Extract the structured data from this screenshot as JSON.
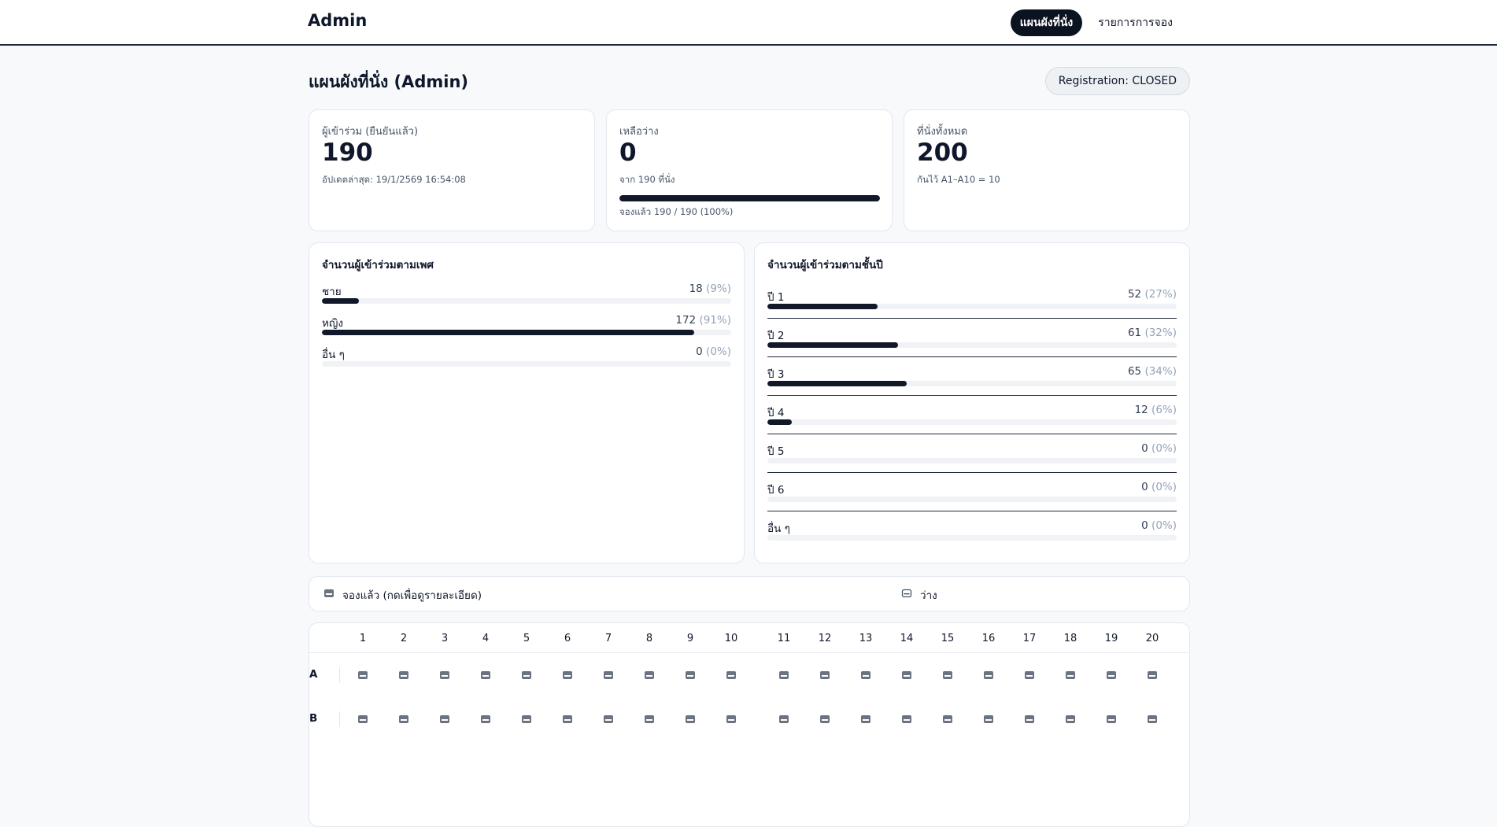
{
  "header": {
    "brand": "Admin",
    "nav": {
      "seat_map": "แผนผังที่นั่ง",
      "bookings": "รายการการจอง"
    }
  },
  "page": {
    "title": "แผนผังที่นั่ง (Admin)",
    "registration_badge": "Registration: CLOSED"
  },
  "stats": {
    "attendees": {
      "label": "ผู้เข้าร่วม (ยืนยันแล้ว)",
      "value": "190",
      "sub": "อัปเดตล่าสุด: 19/1/2569 16:54:08"
    },
    "available": {
      "label": "เหลือว่าง",
      "value": "0",
      "sub": "จาก 190 ที่นั่ง",
      "progress": 1.0,
      "progress_text": "จองแล้ว 190 / 190 (100%)"
    },
    "total": {
      "label": "ที่นั่งทั้งหมด",
      "value": "200",
      "sub": "กันไว้ A1–A10 = 10"
    }
  },
  "gender_panel": {
    "title": "จำนวนผู้เข้าร่วมตามเพศ",
    "rows": [
      {
        "label": "ชาย",
        "count": "18",
        "pct": "(9%)",
        "fraction": 0.09
      },
      {
        "label": "หญิง",
        "count": "172",
        "pct": "(91%)",
        "fraction": 0.91
      },
      {
        "label": "อื่น ๆ",
        "count": "0",
        "pct": "(0%)",
        "fraction": 0
      }
    ]
  },
  "year_panel": {
    "title": "จำนวนผู้เข้าร่วมตามชั้นปี",
    "rows": [
      {
        "label": "ปี 1",
        "count": "52",
        "pct": "(27%)",
        "fraction": 0.27
      },
      {
        "label": "ปี 2",
        "count": "61",
        "pct": "(32%)",
        "fraction": 0.32
      },
      {
        "label": "ปี 3",
        "count": "65",
        "pct": "(34%)",
        "fraction": 0.34
      },
      {
        "label": "ปี 4",
        "count": "12",
        "pct": "(6%)",
        "fraction": 0.06
      },
      {
        "label": "ปี 5",
        "count": "0",
        "pct": "(0%)",
        "fraction": 0
      },
      {
        "label": "ปี 6",
        "count": "0",
        "pct": "(0%)",
        "fraction": 0
      },
      {
        "label": "อื่น ๆ",
        "count": "0",
        "pct": "(0%)",
        "fraction": 0
      }
    ]
  },
  "legend": {
    "booked": "จองแล้ว (กดเพื่อดูรายละเอียด)",
    "free": "ว่าง"
  },
  "seat_grid": {
    "columns": [
      "1",
      "2",
      "3",
      "4",
      "5",
      "6",
      "7",
      "8",
      "9",
      "10",
      "11",
      "12",
      "13",
      "14",
      "15",
      "16",
      "17",
      "18",
      "19",
      "20"
    ],
    "rows": [
      "A",
      "B"
    ]
  },
  "colors": {
    "accent": "#111827",
    "seat": "#6b7280"
  }
}
